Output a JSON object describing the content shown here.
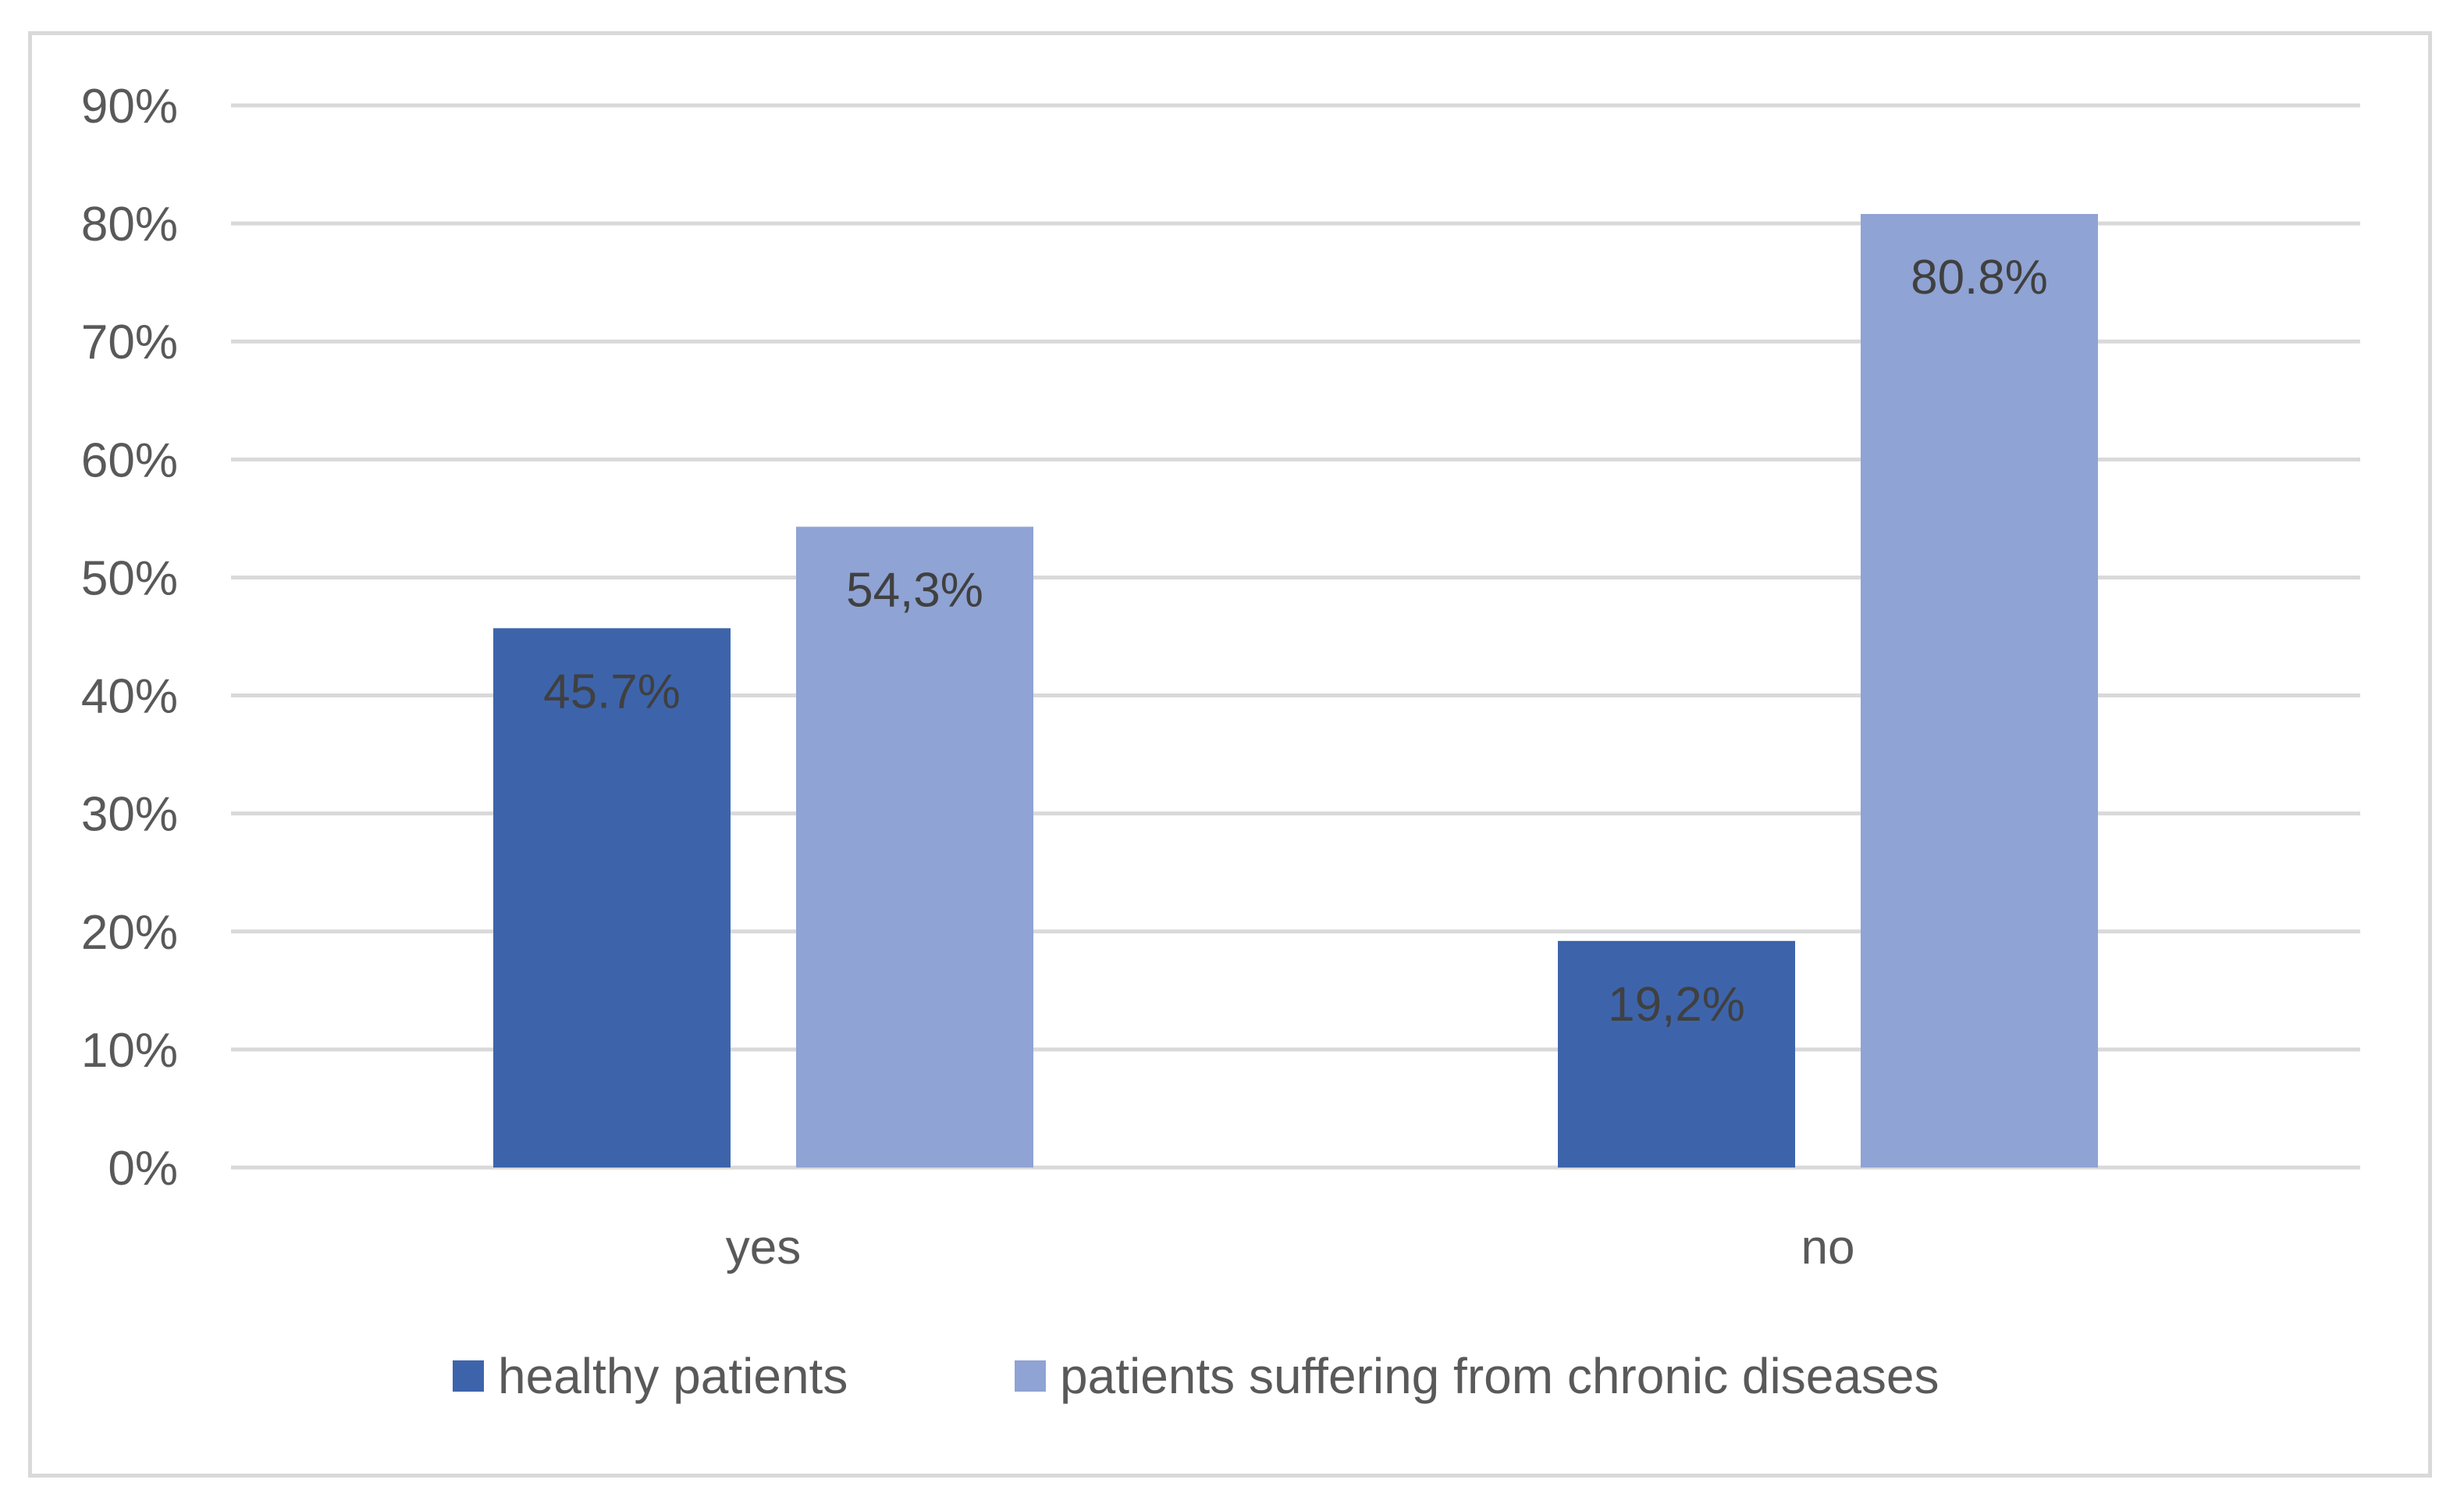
{
  "chart_data": {
    "type": "bar",
    "title": "",
    "xlabel": "",
    "ylabel": "",
    "categories": [
      "yes",
      "no"
    ],
    "ylim": [
      0,
      90
    ],
    "yticks": [
      0,
      10,
      20,
      30,
      40,
      50,
      60,
      70,
      80,
      90
    ],
    "ytick_labels": [
      "0%",
      "10%",
      "20%",
      "30%",
      "40%",
      "50%",
      "60%",
      "70%",
      "80%",
      "90%"
    ],
    "grid": true,
    "legend_position": "bottom",
    "series": [
      {
        "name": "healthy patients",
        "color": "#3d64ab",
        "values": [
          45.7,
          19.2
        ],
        "data_labels": [
          "45.7%",
          "19,2%"
        ]
      },
      {
        "name": "patients suffering from chronic diseases",
        "color": "#8fa3d4",
        "values": [
          54.3,
          80.8
        ],
        "data_labels": [
          "54,3%",
          "80.8%"
        ]
      }
    ]
  },
  "colors": {
    "gridline": "#d9d9d9",
    "axis_text": "#595959",
    "data_label_text": "#404040"
  }
}
